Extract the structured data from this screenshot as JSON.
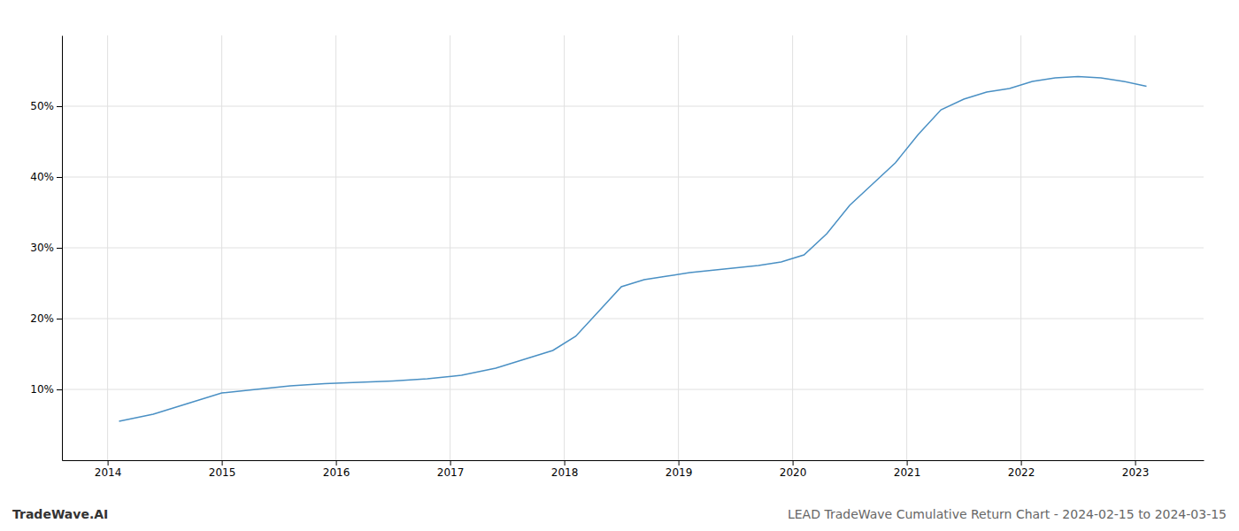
{
  "chart_data": {
    "type": "line",
    "title": "LEAD TradeWave Cumulative Return Chart - 2024-02-15 to 2024-03-15",
    "annotations": [
      "TradeWave.AI"
    ],
    "x": [
      2014.1,
      2014.4,
      2014.7,
      2015.0,
      2015.3,
      2015.6,
      2015.9,
      2016.2,
      2016.5,
      2016.8,
      2017.1,
      2017.4,
      2017.7,
      2017.9,
      2018.1,
      2018.3,
      2018.5,
      2018.7,
      2018.9,
      2019.1,
      2019.4,
      2019.7,
      2019.9,
      2020.1,
      2020.3,
      2020.5,
      2020.7,
      2020.9,
      2021.1,
      2021.3,
      2021.5,
      2021.7,
      2021.9,
      2022.1,
      2022.3,
      2022.5,
      2022.7,
      2022.9,
      2023.1
    ],
    "values": [
      5.5,
      6.5,
      8.0,
      9.5,
      10.0,
      10.5,
      10.8,
      11.0,
      11.2,
      11.5,
      12.0,
      13.0,
      14.5,
      15.5,
      17.5,
      21.0,
      24.5,
      25.5,
      26.0,
      26.5,
      27.0,
      27.5,
      28.0,
      29.0,
      32.0,
      36.0,
      39.0,
      42.0,
      46.0,
      49.5,
      51.0,
      52.0,
      52.5,
      53.5,
      54.0,
      54.2,
      54.0,
      53.5,
      52.8
    ],
    "color": "#4a90c4",
    "xlim": [
      2013.6,
      2023.6
    ],
    "xticks": [
      2014,
      2015,
      2016,
      2017,
      2018,
      2019,
      2020,
      2021,
      2022,
      2023
    ],
    "ylim": [
      0,
      60
    ],
    "yticks": [
      {
        "value": 10,
        "label": "10%"
      },
      {
        "value": 20,
        "label": "20%"
      },
      {
        "value": 30,
        "label": "30%"
      },
      {
        "value": 40,
        "label": "40%"
      },
      {
        "value": 50,
        "label": "50%"
      }
    ],
    "grid": true
  }
}
